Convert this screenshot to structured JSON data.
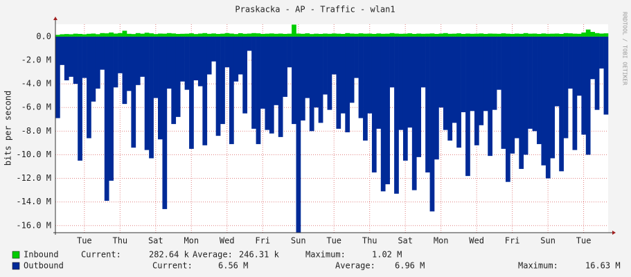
{
  "chart_data": {
    "type": "bar",
    "title": "Praskacka - AP - Traffic - wlan1",
    "y_label": "bits per second",
    "watermark": "RRDTOOL / TOBI OETIKER",
    "categories": [
      null,
      null,
      null,
      null,
      null,
      null,
      "Tue",
      null,
      null,
      null,
      null,
      null,
      null,
      null,
      "Thu",
      null,
      null,
      null,
      null,
      null,
      null,
      null,
      "Sat",
      null,
      null,
      null,
      null,
      null,
      null,
      null,
      "Mon",
      null,
      null,
      null,
      null,
      null,
      null,
      null,
      "Wed",
      null,
      null,
      null,
      null,
      null,
      null,
      null,
      "Fri",
      null,
      null,
      null,
      null,
      null,
      null,
      null,
      "Sun",
      null,
      null,
      null,
      null,
      null,
      null,
      null,
      "Tue",
      null,
      null,
      null,
      null,
      null,
      null,
      null,
      "Thu",
      null,
      null,
      null,
      null,
      null,
      null,
      null,
      "Sat",
      null,
      null,
      null,
      null,
      null,
      null,
      null,
      "Mon",
      null,
      null,
      null,
      null,
      null,
      null,
      null,
      "Wed",
      null,
      null,
      null,
      null,
      null,
      null,
      null,
      "Fri",
      null,
      null,
      null,
      null,
      null,
      null,
      null,
      "Sun",
      null,
      null,
      null,
      null,
      null,
      null,
      null,
      "Tue",
      null,
      null,
      null,
      null,
      null
    ],
    "ylim": [
      -16600000,
      1050000
    ],
    "yticks": [
      {
        "value": 0,
        "label": "0.0"
      },
      {
        "value": -2000000,
        "label": "-2.0 M"
      },
      {
        "value": -4000000,
        "label": "-4.0 M"
      },
      {
        "value": -6000000,
        "label": "-6.0 M"
      },
      {
        "value": -8000000,
        "label": "-8.0 M"
      },
      {
        "value": -10000000,
        "label": "-10.0 M"
      },
      {
        "value": -12000000,
        "label": "-12.0 M"
      },
      {
        "value": -14000000,
        "label": "-14.0 M"
      },
      {
        "value": -16000000,
        "label": "-16.0 M"
      }
    ],
    "grid": true,
    "legend_labels": [
      "Current:",
      "Average:",
      "Maximum:"
    ],
    "series": [
      {
        "name": "Inbound",
        "color": "#00cc00",
        "stats": [
          "282.64 k",
          "246.31 k",
          "1.02 M"
        ],
        "values": [
          150000,
          200000,
          220000,
          200000,
          250000,
          230000,
          200000,
          240000,
          260000,
          210000,
          300000,
          280000,
          350000,
          260000,
          300000,
          500000,
          240000,
          220000,
          300000,
          250000,
          330000,
          280000,
          220000,
          260000,
          250000,
          300000,
          270000,
          230000,
          240000,
          250000,
          280000,
          220000,
          260000,
          300000,
          240000,
          270000,
          230000,
          250000,
          300000,
          260000,
          220000,
          290000,
          240000,
          260000,
          300000,
          280000,
          230000,
          250000,
          270000,
          240000,
          260000,
          230000,
          250000,
          1020000,
          260000,
          240000,
          280000,
          220000,
          250000,
          230000,
          260000,
          240000,
          270000,
          250000,
          230000,
          300000,
          260000,
          240000,
          280000,
          250000,
          260000,
          230000,
          270000,
          240000,
          250000,
          300000,
          260000,
          240000,
          250000,
          280000,
          230000,
          260000,
          240000,
          250000,
          270000,
          230000,
          260000,
          300000,
          240000,
          250000,
          280000,
          230000,
          260000,
          240000,
          250000,
          270000,
          230000,
          260000,
          250000,
          240000,
          280000,
          250000,
          230000,
          260000,
          240000,
          300000,
          250000,
          260000,
          230000,
          270000,
          240000,
          250000,
          260000,
          230000,
          300000,
          280000,
          250000,
          240000,
          350000,
          600000,
          400000,
          300000,
          260000,
          280000
        ]
      },
      {
        "name": "Outbound",
        "color": "#002a97",
        "stats": [
          "6.56 M",
          "6.96 M",
          "16.63 M"
        ],
        "values": [
          -6900000,
          -2400000,
          -3700000,
          -3400000,
          -4000000,
          -10500000,
          -3500000,
          -8600000,
          -5500000,
          -4400000,
          -2800000,
          -13900000,
          -12200000,
          -4300000,
          -3100000,
          -5700000,
          -4600000,
          -9400000,
          -4100000,
          -3400000,
          -9600000,
          -10300000,
          -5200000,
          -8700000,
          -14600000,
          -4400000,
          -7400000,
          -6800000,
          -3800000,
          -4500000,
          -9500000,
          -3700000,
          -4200000,
          -9200000,
          -3200000,
          -2100000,
          -8400000,
          -7400000,
          -2600000,
          -9100000,
          -3800000,
          -3200000,
          -6500000,
          -1200000,
          -7800000,
          -9100000,
          -6100000,
          -7900000,
          -8200000,
          -5800000,
          -8500000,
          -5100000,
          -2600000,
          -7400000,
          -16600000,
          -7100000,
          -5200000,
          -8000000,
          -6000000,
          -7300000,
          -4900000,
          -6200000,
          -3200000,
          -7800000,
          -6500000,
          -8100000,
          -5600000,
          -3500000,
          -6900000,
          -8800000,
          -6500000,
          -11500000,
          -7800000,
          -13100000,
          -12500000,
          -4300000,
          -13300000,
          -7900000,
          -10500000,
          -7700000,
          -13000000,
          -10200000,
          -4300000,
          -11500000,
          -14800000,
          -10400000,
          -6000000,
          -7900000,
          -8800000,
          -7300000,
          -9400000,
          -6400000,
          -11800000,
          -6300000,
          -9200000,
          -7500000,
          -6300000,
          -10100000,
          -6200000,
          -4500000,
          -9500000,
          -12300000,
          -9900000,
          -8600000,
          -11200000,
          -10000000,
          -7800000,
          -8000000,
          -9100000,
          -10900000,
          -12000000,
          -10300000,
          -5900000,
          -11400000,
          -8600000,
          -4400000,
          -9600000,
          -5000000,
          -8300000,
          -10000000,
          -3600000,
          -6200000,
          -2700000,
          -6600000
        ]
      }
    ]
  }
}
